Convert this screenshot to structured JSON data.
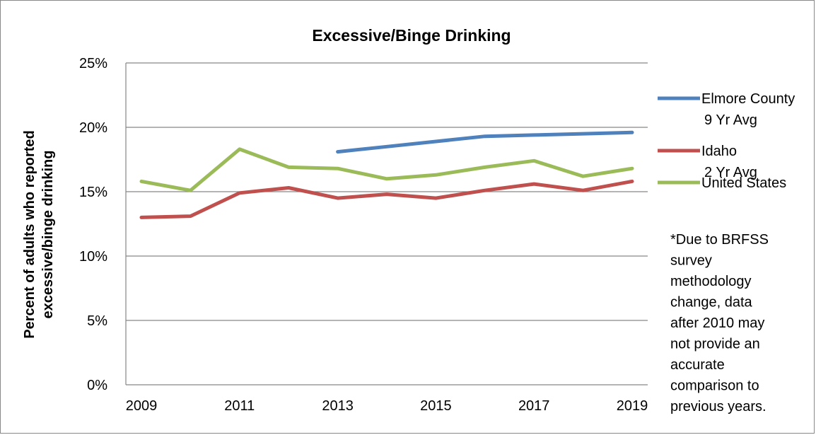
{
  "chart_data": {
    "type": "line",
    "title": "Excessive/Binge Drinking",
    "ylabel_lines": [
      "Percent of adults who reported",
      "excessive/binge drinking"
    ],
    "xlabel": "",
    "x": [
      2009,
      2010,
      2011,
      2012,
      2013,
      2014,
      2015,
      2016,
      2017,
      2018,
      2019
    ],
    "x_tick_labels": [
      "2009",
      "2011",
      "2013",
      "2015",
      "2017",
      "2019"
    ],
    "x_tick_values": [
      2009,
      2011,
      2013,
      2015,
      2017,
      2019
    ],
    "ylim": [
      0,
      25
    ],
    "y_ticks": [
      0,
      5,
      10,
      15,
      20,
      25
    ],
    "y_tick_labels": [
      "0%",
      "5%",
      "10%",
      "15%",
      "20%",
      "25%"
    ],
    "grid": true,
    "legend_position": "right",
    "series": [
      {
        "name_lines": [
          "Elmore County",
          "9 Yr Avg"
        ],
        "color": "#4f81bd",
        "values": [
          null,
          null,
          null,
          null,
          18.1,
          18.5,
          18.9,
          19.3,
          19.4,
          19.5,
          19.6
        ]
      },
      {
        "name_lines": [
          "Idaho",
          "2 Yr Avg"
        ],
        "color": "#c0504d",
        "values": [
          13.0,
          13.1,
          14.9,
          15.3,
          14.5,
          14.8,
          14.5,
          15.1,
          15.6,
          15.1,
          15.8
        ]
      },
      {
        "name_lines": [
          "United States"
        ],
        "color": "#9bbb59",
        "values": [
          15.8,
          15.1,
          18.3,
          16.9,
          16.8,
          16.0,
          16.3,
          16.9,
          17.4,
          16.2,
          16.8
        ]
      }
    ],
    "note_lines": [
      "*Due to BRFSS",
      "survey",
      "methodology",
      "change, data",
      "after 2010 may",
      "not provide an",
      "accurate",
      "comparison to",
      "previous years."
    ]
  }
}
